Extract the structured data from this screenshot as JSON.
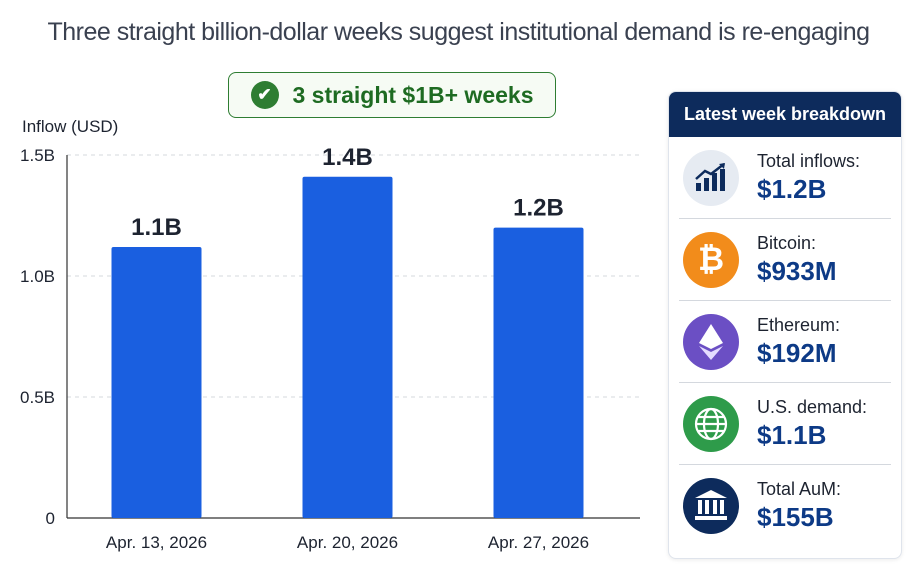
{
  "subtitle": "Three straight billion-dollar weeks suggest institutional demand is re-engaging",
  "badge": {
    "text": "3 straight $1B+ weeks",
    "icon": "check-circle-icon",
    "color": "#2e7d32"
  },
  "chart_data": {
    "type": "bar",
    "ylabel": "Inflow (USD)",
    "categories": [
      "Apr. 13, 2026",
      "Apr. 20, 2026",
      "Apr. 27, 2026"
    ],
    "values": [
      1.12,
      1.41,
      1.2
    ],
    "value_unit": "B",
    "data_labels": [
      "1.1B",
      "1.4B",
      "1.2B"
    ],
    "ylim": [
      0,
      1.5
    ],
    "yticks": [
      0,
      0.5,
      1.0,
      1.5
    ],
    "ytick_labels": [
      "0",
      "0.5B",
      "1.0B",
      "1.5B"
    ],
    "grid": true,
    "bar_color": "#1a5fe0"
  },
  "panel": {
    "title": "Latest week breakdown",
    "items": [
      {
        "label": "Total inflows:",
        "value": "$1.2B",
        "icon": "chart-trend-icon",
        "color": "#e6ebf2"
      },
      {
        "label": "Bitcoin:",
        "value": "$933M",
        "icon": "bitcoin-icon",
        "color": "#f28c1b"
      },
      {
        "label": "Ethereum:",
        "value": "$192M",
        "icon": "ethereum-icon",
        "color": "#6b4fc4"
      },
      {
        "label": "U.S. demand:",
        "value": "$1.1B",
        "icon": "globe-icon",
        "color": "#2e9b4a"
      },
      {
        "label": "Total AuM:",
        "value": "$155B",
        "icon": "bank-icon",
        "color": "#0d2b5c"
      }
    ]
  }
}
